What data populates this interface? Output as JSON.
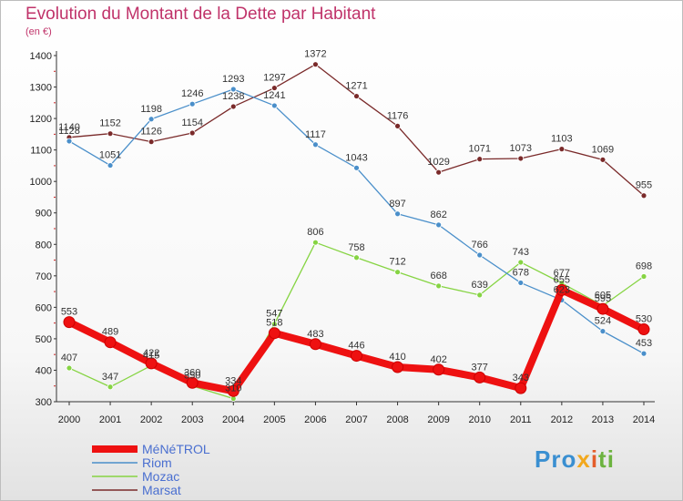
{
  "header": {
    "title": "Evolution du Montant de la Dette par Habitant",
    "subtitle": "(en €)"
  },
  "logo": {
    "text": "Proxiti",
    "colors": [
      "#3a8fd1",
      "#f2a81d",
      "#e45d2a",
      "#6cb33f"
    ]
  },
  "chart_data": {
    "type": "line",
    "title": "Evolution du Montant de la Dette par Habitant",
    "ylabel": "(en €)",
    "xlabel": "",
    "x": [
      "2000",
      "2001",
      "2002",
      "2003",
      "2004",
      "2005",
      "2006",
      "2007",
      "2008",
      "2009",
      "2010",
      "2011",
      "2012",
      "2013",
      "2014"
    ],
    "ylim": [
      300,
      1400
    ],
    "yticks": [
      300,
      400,
      500,
      600,
      700,
      800,
      900,
      1000,
      1100,
      1200,
      1300,
      1400
    ],
    "grid": false,
    "legend": "bottom-left",
    "series": [
      {
        "name": "MéNéTROL",
        "color": "#ee1111",
        "values": [
          553,
          489,
          422,
          360,
          334,
          518,
          483,
          446,
          410,
          402,
          377,
          343,
          655,
          595,
          530
        ]
      },
      {
        "name": "Riom",
        "color": "#4a8fca",
        "values": [
          1128,
          1051,
          1198,
          1246,
          1293,
          1241,
          1117,
          1043,
          897,
          862,
          766,
          678,
          623,
          524,
          453
        ]
      },
      {
        "name": "Mozac",
        "color": "#86d443",
        "values": [
          407,
          347,
          415,
          350,
          310,
          547,
          806,
          758,
          712,
          668,
          639,
          743,
          677,
          605,
          698
        ]
      },
      {
        "name": "Marsat",
        "color": "#7a2a2a",
        "values": [
          1140,
          1152,
          1126,
          1154,
          1238,
          1297,
          1372,
          1271,
          1176,
          1029,
          1071,
          1073,
          1103,
          1069,
          955
        ]
      }
    ]
  }
}
